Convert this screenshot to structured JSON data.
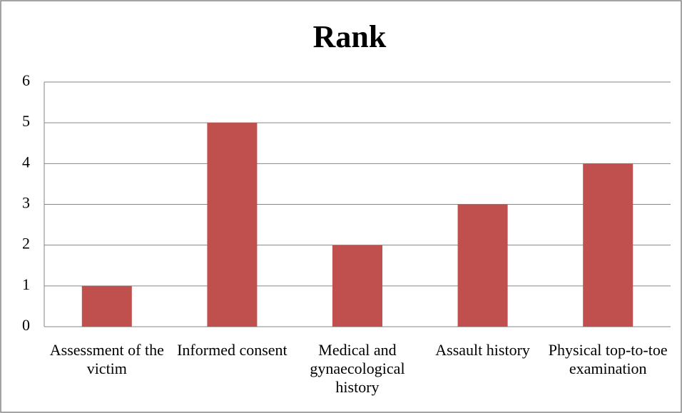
{
  "chart_data": {
    "type": "bar",
    "title": "Rank",
    "categories": [
      "Assessment of the victim",
      "Informed consent",
      "Medical and gynaecological history",
      "Assault history",
      "Physical top-to-toe examination"
    ],
    "values": [
      1,
      5,
      2,
      3,
      4
    ],
    "color": "#c0504d",
    "ylim": [
      0,
      6
    ],
    "yticks": [
      0,
      1,
      2,
      3,
      4,
      5,
      6
    ],
    "grid": true
  }
}
